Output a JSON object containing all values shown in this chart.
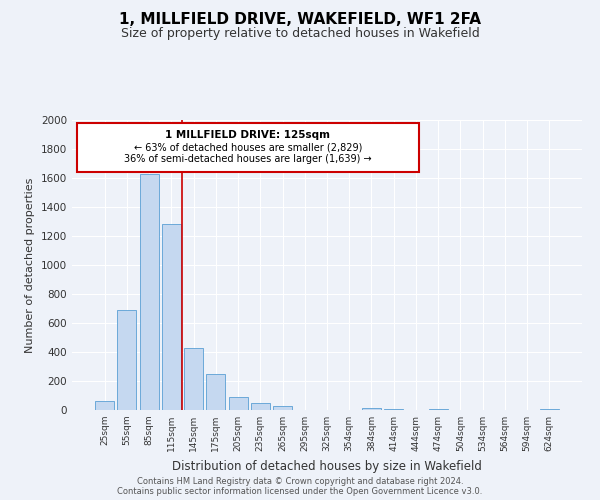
{
  "title": "1, MILLFIELD DRIVE, WAKEFIELD, WF1 2FA",
  "subtitle": "Size of property relative to detached houses in Wakefield",
  "xlabel": "Distribution of detached houses by size in Wakefield",
  "ylabel": "Number of detached properties",
  "footer_line1": "Contains HM Land Registry data © Crown copyright and database right 2024.",
  "footer_line2": "Contains public sector information licensed under the Open Government Licence v3.0.",
  "categories": [
    "25sqm",
    "55sqm",
    "85sqm",
    "115sqm",
    "145sqm",
    "175sqm",
    "205sqm",
    "235sqm",
    "265sqm",
    "295sqm",
    "325sqm",
    "354sqm",
    "384sqm",
    "414sqm",
    "444sqm",
    "474sqm",
    "504sqm",
    "534sqm",
    "564sqm",
    "594sqm",
    "624sqm"
  ],
  "values": [
    65,
    690,
    1630,
    1280,
    430,
    250,
    90,
    50,
    30,
    0,
    0,
    0,
    15,
    10,
    0,
    10,
    0,
    0,
    0,
    0,
    10
  ],
  "bar_color": "#c5d8f0",
  "bar_edge_color": "#5a9fd4",
  "ylim": [
    0,
    2000
  ],
  "yticks": [
    0,
    200,
    400,
    600,
    800,
    1000,
    1200,
    1400,
    1600,
    1800,
    2000
  ],
  "property_label": "1 MILLFIELD DRIVE: 125sqm",
  "annotation_line1": "← 63% of detached houses are smaller (2,829)",
  "annotation_line2": "36% of semi-detached houses are larger (1,639) →",
  "vline_color": "#cc0000",
  "box_color": "#cc0000",
  "bg_color": "#eef2f9",
  "grid_color": "#ffffff",
  "title_fontsize": 11,
  "subtitle_fontsize": 9,
  "vline_x_index": 3.5
}
